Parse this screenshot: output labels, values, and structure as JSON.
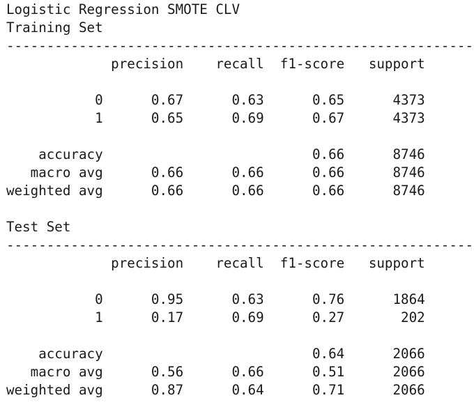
{
  "title": "Logistic Regression SMOTE CLV",
  "divider": "----------------------------------------------------------",
  "header": {
    "precision": "precision",
    "recall": "recall",
    "f1": "f1-score",
    "support": "support"
  },
  "sections": [
    {
      "label": "Training Set",
      "rows": [
        {
          "name": "0",
          "precision": "0.67",
          "recall": "0.63",
          "f1": "0.65",
          "support": "4373"
        },
        {
          "name": "1",
          "precision": "0.65",
          "recall": "0.69",
          "f1": "0.67",
          "support": "4373"
        }
      ],
      "summary": [
        {
          "name": "accuracy",
          "precision": "",
          "recall": "",
          "f1": "0.66",
          "support": "8746"
        },
        {
          "name": "macro avg",
          "precision": "0.66",
          "recall": "0.66",
          "f1": "0.66",
          "support": "8746"
        },
        {
          "name": "weighted avg",
          "precision": "0.66",
          "recall": "0.66",
          "f1": "0.66",
          "support": "8746"
        }
      ]
    },
    {
      "label": "Test Set",
      "rows": [
        {
          "name": "0",
          "precision": "0.95",
          "recall": "0.63",
          "f1": "0.76",
          "support": "1864"
        },
        {
          "name": "1",
          "precision": "0.17",
          "recall": "0.69",
          "f1": "0.27",
          "support": "202"
        }
      ],
      "summary": [
        {
          "name": "accuracy",
          "precision": "",
          "recall": "",
          "f1": "0.64",
          "support": "2066"
        },
        {
          "name": "macro avg",
          "precision": "0.56",
          "recall": "0.66",
          "f1": "0.51",
          "support": "2066"
        },
        {
          "name": "weighted avg",
          "precision": "0.87",
          "recall": "0.64",
          "f1": "0.71",
          "support": "2066"
        }
      ]
    }
  ]
}
